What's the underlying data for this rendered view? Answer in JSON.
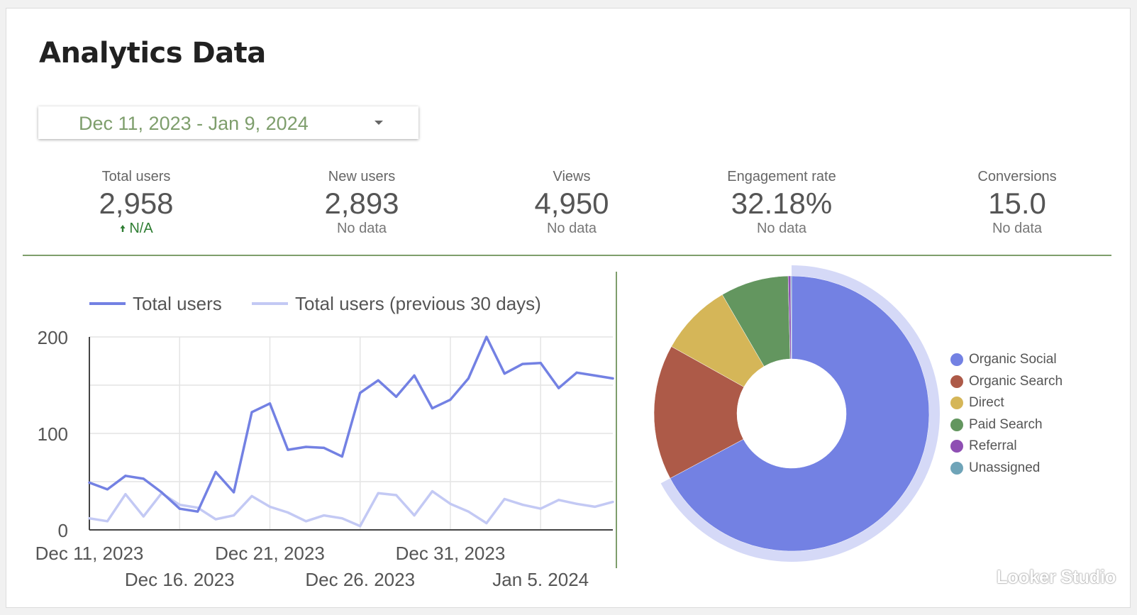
{
  "page": {
    "title": "Analytics Data",
    "date_range": "Dec 11, 2023 - Jan 9, 2024",
    "watermark": "Looker Studio"
  },
  "kpis": [
    {
      "label": "Total users",
      "value": "2,958",
      "sub": "N/A",
      "sub_icon": "arrow-up-icon"
    },
    {
      "label": "New users",
      "value": "2,893",
      "sub": "No data"
    },
    {
      "label": "Views",
      "value": "4,950",
      "sub": "No data"
    },
    {
      "label": "Engagement rate",
      "value": "32.18%",
      "sub": "No data"
    },
    {
      "label": "Conversions",
      "value": "15.0",
      "sub": "No data"
    }
  ],
  "colors": {
    "accent": "#7e9e6c",
    "current_series": "#7381e3",
    "previous_series": "#c3c9f4",
    "positive": "#2e7d32"
  },
  "chart_data": [
    {
      "type": "line",
      "title": "",
      "xlabel": "",
      "ylabel": "",
      "ylim": [
        0,
        200
      ],
      "yticks": [
        0,
        100,
        200
      ],
      "x": [
        "Dec 11, 2023",
        "Dec 12, 2023",
        "Dec 13, 2023",
        "Dec 14, 2023",
        "Dec 15, 2023",
        "Dec 16, 2023",
        "Dec 17, 2023",
        "Dec 18, 2023",
        "Dec 19, 2023",
        "Dec 20, 2023",
        "Dec 21, 2023",
        "Dec 22, 2023",
        "Dec 23, 2023",
        "Dec 24, 2023",
        "Dec 25, 2023",
        "Dec 26, 2023",
        "Dec 27, 2023",
        "Dec 28, 2023",
        "Dec 29, 2023",
        "Dec 30, 2023",
        "Dec 31, 2023",
        "Jan 1, 2024",
        "Jan 2, 2024",
        "Jan 3, 2024",
        "Jan 4, 2024",
        "Jan 5, 2024",
        "Jan 6, 2024",
        "Jan 7, 2024",
        "Jan 8, 2024",
        "Jan 9, 2024"
      ],
      "xtick_labels": [
        {
          "index": 0,
          "label": "Dec 11, 2023",
          "row": 1
        },
        {
          "index": 5,
          "label": "Dec 16. 2023",
          "row": 2
        },
        {
          "index": 10,
          "label": "Dec 21, 2023",
          "row": 1
        },
        {
          "index": 15,
          "label": "Dec 26. 2023",
          "row": 2
        },
        {
          "index": 20,
          "label": "Dec 31, 2023",
          "row": 1
        },
        {
          "index": 25,
          "label": "Jan 5. 2024",
          "row": 2
        }
      ],
      "series": [
        {
          "name": "Total users",
          "color": "#7381e3",
          "values": [
            49,
            42,
            56,
            53,
            39,
            22,
            19,
            60,
            39,
            122,
            131,
            83,
            86,
            85,
            76,
            142,
            155,
            138,
            160,
            126,
            135,
            157,
            200,
            162,
            172,
            173,
            147,
            163,
            160,
            157
          ]
        },
        {
          "name": "Total users (previous 30 days)",
          "color": "#c3c9f4",
          "values": [
            12,
            9,
            37,
            14,
            38,
            26,
            23,
            11,
            15,
            35,
            24,
            18,
            9,
            15,
            12,
            4,
            38,
            36,
            15,
            40,
            27,
            19,
            7,
            32,
            26,
            22,
            31,
            27,
            24,
            29
          ]
        }
      ],
      "legend": "top"
    },
    {
      "type": "pie",
      "title": "",
      "donut": true,
      "categories": [
        "Organic Social",
        "Organic Search",
        "Direct",
        "Paid Search",
        "Referral",
        "Unassigned"
      ],
      "values": [
        67.2,
        15.9,
        8.5,
        8.0,
        0.3,
        0.1
      ],
      "colors": [
        "#7381e3",
        "#ad5a48",
        "#d5b658",
        "#63965f",
        "#8e4fb3",
        "#6fa4b8"
      ],
      "highlighted": "Organic Social",
      "legend": "right"
    }
  ]
}
